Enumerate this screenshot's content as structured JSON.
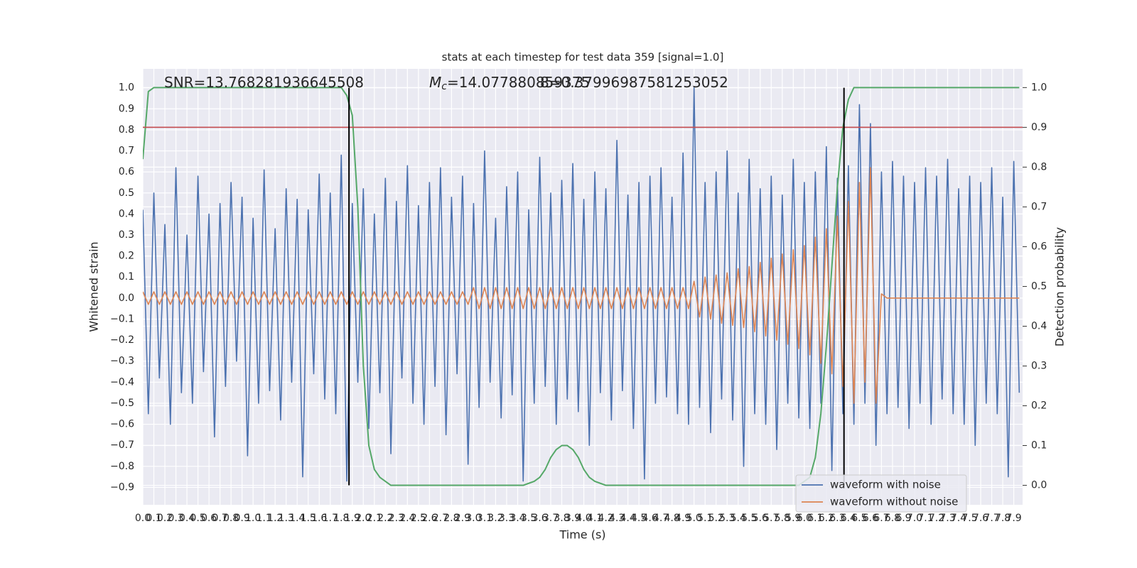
{
  "chart_data": {
    "type": "line",
    "title": "stats at each timestep for test data 359 [signal=1.0]",
    "x_label": "Time (s)",
    "y_label": "Whitened strain",
    "y2_label": "Detection probability",
    "grid": true,
    "legend": "lower right",
    "xlim": [
      0,
      7.98
    ],
    "ylim": [
      -0.983,
      1.09
    ],
    "y2lim": [
      -0.049,
      1.047
    ],
    "xticks": [
      {
        "value": 0,
        "label": "0.0"
      },
      0.1,
      0.2,
      0.3,
      0.4,
      0.5,
      0.6,
      0.7,
      0.8,
      0.9,
      {
        "value": 1,
        "label": "1.0"
      },
      1.1,
      1.2,
      1.3,
      1.4,
      1.5,
      1.6,
      1.7,
      1.8,
      1.9,
      {
        "value": 2,
        "label": "2.0"
      },
      2.1,
      2.2,
      2.3,
      2.4,
      2.5,
      2.6,
      2.7,
      2.8,
      2.9,
      {
        "value": 3,
        "label": "3.0"
      },
      3.1,
      3.2,
      3.3,
      3.4,
      3.5,
      3.6,
      3.7,
      3.8,
      3.9,
      {
        "value": 4,
        "label": "4.0"
      },
      4.1,
      4.2,
      4.3,
      4.4,
      4.5,
      4.6,
      4.7,
      4.8,
      4.9,
      {
        "value": 5,
        "label": "5.0"
      },
      5.1,
      5.2,
      5.3,
      5.4,
      5.5,
      5.6,
      5.7,
      5.8,
      5.9,
      {
        "value": 6,
        "label": "6.0"
      },
      6.1,
      6.2,
      6.3,
      6.4,
      6.5,
      6.6,
      6.7,
      6.8,
      6.9,
      {
        "value": 7,
        "label": "7.0"
      },
      7.1,
      7.2,
      7.3,
      7.4,
      7.5,
      7.6,
      7.7,
      7.8,
      7.9
    ],
    "yticks": [
      {
        "value": -0.9,
        "label": "−0.9"
      },
      {
        "value": -0.8,
        "label": "−0.8"
      },
      {
        "value": -0.7,
        "label": "−0.7"
      },
      {
        "value": -0.6,
        "label": "−0.6"
      },
      {
        "value": -0.5,
        "label": "−0.5"
      },
      {
        "value": -0.4,
        "label": "−0.4"
      },
      {
        "value": -0.3,
        "label": "−0.3"
      },
      {
        "value": -0.2,
        "label": "−0.2"
      },
      {
        "value": -0.1,
        "label": "−0.1"
      },
      {
        "value": 0,
        "label": "0.0"
      },
      0.1,
      0.2,
      0.3,
      0.4,
      0.5,
      0.6,
      0.7,
      0.8,
      0.9,
      {
        "value": 1,
        "label": "1.0"
      }
    ],
    "y2ticks": [
      {
        "value": 0,
        "label": "0.0"
      },
      0.1,
      0.2,
      0.3,
      0.4,
      0.5,
      0.6,
      0.7,
      0.8,
      0.9,
      {
        "value": 1,
        "label": "1.0"
      }
    ],
    "annotations": [
      {
        "text": "SNR=13.768281936645508"
      },
      {
        "symbol": "M",
        "subscript": "c",
        "text": "=14.077880859375"
      },
      {
        "text": "8=0.37996987581253052"
      }
    ],
    "threshold_y2": 0.9,
    "threshold_color": "#c44e52",
    "vlines": [
      1.87,
      6.36
    ],
    "vline_ylim": [
      -0.89,
      1.0
    ],
    "vline_color": "#000000",
    "x": [
      0,
      0.05,
      0.1,
      0.15,
      0.2,
      0.25,
      0.3,
      0.35,
      0.4,
      0.45,
      0.5,
      0.55,
      0.6,
      0.65,
      0.7,
      0.75,
      0.8,
      0.85,
      0.9,
      0.95,
      1,
      1.05,
      1.1,
      1.15,
      1.2,
      1.25,
      1.3,
      1.35,
      1.4,
      1.45,
      1.5,
      1.55,
      1.6,
      1.65,
      1.7,
      1.75,
      1.8,
      1.85,
      1.9,
      1.95,
      2,
      2.05,
      2.1,
      2.15,
      2.2,
      2.25,
      2.3,
      2.35,
      2.4,
      2.45,
      2.5,
      2.55,
      2.6,
      2.65,
      2.7,
      2.75,
      2.8,
      2.85,
      2.9,
      2.95,
      3,
      3.05,
      3.1,
      3.15,
      3.2,
      3.25,
      3.3,
      3.35,
      3.4,
      3.45,
      3.5,
      3.55,
      3.6,
      3.65,
      3.7,
      3.75,
      3.8,
      3.85,
      3.9,
      3.95,
      4,
      4.05,
      4.1,
      4.15,
      4.2,
      4.25,
      4.3,
      4.35,
      4.4,
      4.45,
      4.5,
      4.55,
      4.6,
      4.65,
      4.7,
      4.75,
      4.8,
      4.85,
      4.9,
      4.95,
      5,
      5.05,
      5.1,
      5.15,
      5.2,
      5.25,
      5.3,
      5.35,
      5.4,
      5.45,
      5.5,
      5.55,
      5.6,
      5.65,
      5.7,
      5.75,
      5.8,
      5.85,
      5.9,
      5.95,
      6,
      6.05,
      6.1,
      6.15,
      6.2,
      6.25,
      6.3,
      6.35,
      6.4,
      6.45,
      6.5,
      6.55,
      6.6,
      6.65,
      6.7,
      6.75,
      6.8,
      6.85,
      6.9,
      6.95,
      7,
      7.05,
      7.1,
      7.15,
      7.2,
      7.25,
      7.3,
      7.35,
      7.4,
      7.45,
      7.5,
      7.55,
      7.6,
      7.65,
      7.7,
      7.75,
      7.8,
      7.85,
      7.9,
      7.95
    ],
    "series": [
      {
        "name": "waveform with noise",
        "color": "#4c72b0",
        "values": [
          0.42,
          -0.55,
          0.5,
          -0.38,
          0.35,
          -0.6,
          0.62,
          -0.45,
          0.3,
          -0.5,
          0.58,
          -0.35,
          0.4,
          -0.66,
          0.45,
          -0.42,
          0.55,
          -0.3,
          0.48,
          -0.75,
          0.38,
          -0.5,
          0.61,
          -0.44,
          0.33,
          -0.58,
          0.52,
          -0.4,
          0.47,
          -0.85,
          0.42,
          -0.36,
          0.59,
          -0.48,
          0.5,
          -0.55,
          0.68,
          -0.87,
          0.45,
          -0.4,
          0.52,
          -0.62,
          0.4,
          -0.45,
          0.57,
          -0.74,
          0.46,
          -0.38,
          0.63,
          -0.5,
          0.44,
          -0.6,
          0.55,
          -0.42,
          0.62,
          -0.65,
          0.48,
          -0.36,
          0.58,
          -0.79,
          0.45,
          -0.52,
          0.7,
          -0.4,
          0.38,
          -0.57,
          0.53,
          -0.46,
          0.6,
          -0.87,
          0.42,
          -0.5,
          0.67,
          -0.42,
          0.5,
          -0.6,
          0.56,
          -0.48,
          0.64,
          -0.54,
          0.47,
          -0.7,
          0.6,
          -0.45,
          0.52,
          -0.58,
          0.75,
          -0.44,
          0.49,
          -0.62,
          0.55,
          -0.86,
          0.58,
          -0.5,
          0.62,
          -0.47,
          0.48,
          -0.55,
          0.69,
          -0.6,
          1.0,
          -0.52,
          0.55,
          -0.64,
          0.6,
          -0.48,
          0.7,
          -0.58,
          0.5,
          -0.8,
          0.66,
          -0.55,
          0.52,
          -0.6,
          0.58,
          -0.72,
          0.49,
          -0.5,
          0.66,
          -0.57,
          0.55,
          -0.62,
          0.6,
          -0.5,
          0.72,
          -0.82,
          0.57,
          -0.55,
          0.63,
          -0.6,
          0.92,
          -0.5,
          0.83,
          -0.7,
          0.6,
          -0.55,
          0.65,
          -0.52,
          0.58,
          -0.62,
          0.55,
          -0.5,
          0.62,
          -0.6,
          0.58,
          -0.48,
          0.66,
          -0.55,
          0.52,
          -0.6,
          0.58,
          -0.7,
          0.55,
          -0.5,
          0.62,
          -0.55,
          0.48,
          -0.85,
          0.65,
          -0.45
        ]
      },
      {
        "name": "waveform without noise",
        "color": "#dd8452",
        "values": [
          0.03,
          -0.03,
          0.03,
          -0.03,
          0.03,
          -0.03,
          0.03,
          -0.03,
          0.03,
          -0.03,
          0.03,
          -0.03,
          0.03,
          -0.03,
          0.03,
          -0.03,
          0.03,
          -0.03,
          0.03,
          -0.03,
          0.03,
          -0.03,
          0.03,
          -0.03,
          0.03,
          -0.03,
          0.03,
          -0.03,
          0.03,
          -0.03,
          0.03,
          -0.03,
          0.03,
          -0.03,
          0.03,
          -0.03,
          0.03,
          -0.03,
          0.03,
          -0.03,
          0.03,
          -0.03,
          0.03,
          -0.03,
          0.03,
          -0.03,
          0.03,
          -0.03,
          0.03,
          -0.03,
          0.03,
          -0.03,
          0.03,
          -0.03,
          0.03,
          -0.03,
          0.03,
          -0.03,
          0.03,
          -0.03,
          0.05,
          -0.05,
          0.05,
          -0.05,
          0.05,
          -0.05,
          0.05,
          -0.05,
          0.05,
          -0.05,
          0.05,
          -0.05,
          0.05,
          -0.05,
          0.05,
          -0.05,
          0.05,
          -0.05,
          0.05,
          -0.05,
          0.05,
          -0.05,
          0.05,
          -0.05,
          0.05,
          -0.05,
          0.05,
          -0.05,
          0.05,
          -0.05,
          0.05,
          -0.05,
          0.05,
          -0.05,
          0.05,
          -0.05,
          0.05,
          -0.05,
          0.05,
          -0.05,
          0.08,
          -0.09,
          0.1,
          -0.1,
          0.11,
          -0.12,
          0.12,
          -0.13,
          0.14,
          -0.14,
          0.15,
          -0.16,
          0.17,
          -0.18,
          0.19,
          -0.2,
          0.21,
          -0.22,
          0.23,
          -0.24,
          0.25,
          -0.27,
          0.29,
          -0.31,
          0.33,
          -0.36,
          0.39,
          -0.42,
          0.46,
          -0.5,
          0.55,
          -0.4,
          0.62,
          -0.5,
          0.02,
          0,
          0,
          0,
          0,
          0,
          0,
          0,
          0,
          0,
          0,
          0,
          0,
          0,
          0,
          0,
          0,
          0,
          0,
          0,
          0,
          0,
          0,
          0,
          0,
          0
        ]
      },
      {
        "color": "#55a868",
        "axis": "y2",
        "values": [
          0.82,
          0.99,
          1,
          1,
          1,
          1,
          1,
          1,
          1,
          1,
          1,
          1,
          1,
          1,
          1,
          1,
          1,
          1,
          1,
          1,
          1,
          1,
          1,
          1,
          1,
          1,
          1,
          1,
          1,
          1,
          1,
          1,
          1,
          1,
          1,
          1,
          1,
          0.98,
          0.93,
          0.7,
          0.3,
          0.1,
          0.04,
          0.02,
          0.01,
          0,
          0,
          0,
          0,
          0,
          0,
          0,
          0,
          0,
          0,
          0,
          0,
          0,
          0,
          0,
          0,
          0,
          0,
          0,
          0,
          0,
          0,
          0,
          0,
          0,
          0.005,
          0.01,
          0.02,
          0.04,
          0.07,
          0.09,
          0.1,
          0.1,
          0.09,
          0.07,
          0.04,
          0.02,
          0.01,
          0.005,
          0,
          0,
          0,
          0,
          0,
          0,
          0,
          0,
          0,
          0,
          0,
          0,
          0,
          0,
          0,
          0,
          0,
          0,
          0,
          0,
          0,
          0,
          0,
          0,
          0,
          0,
          0,
          0,
          0,
          0,
          0,
          0,
          0,
          0,
          0,
          0,
          0.01,
          0.02,
          0.07,
          0.18,
          0.35,
          0.55,
          0.75,
          0.9,
          0.97,
          1,
          1,
          1,
          1,
          1,
          1,
          1,
          1,
          1,
          1,
          1,
          1,
          1,
          1,
          1,
          1,
          1,
          1,
          1,
          1,
          1,
          1,
          1,
          1,
          1,
          1,
          1,
          1,
          1,
          1,
          1
        ]
      }
    ]
  }
}
